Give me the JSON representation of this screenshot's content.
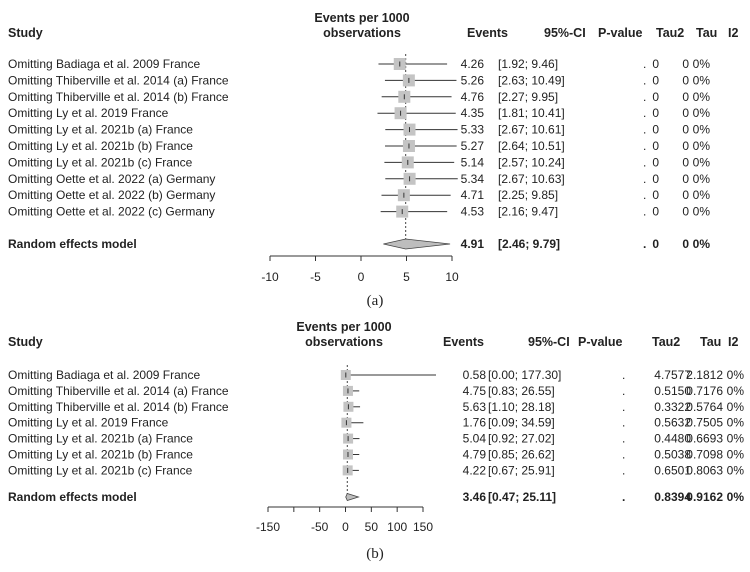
{
  "caption_a": "(a)",
  "caption_b": "(b)",
  "chart_data": [
    {
      "type": "forest",
      "header": {
        "study": "Study",
        "events_per_1000_line1": "Events per 1000",
        "events_per_1000_line2": "observations",
        "events": "Events",
        "ci": "95%-CI",
        "pvalue": "P-value",
        "tau2": "Tau2",
        "tau": "Tau",
        "i2": "I2"
      },
      "xlim": [
        -10,
        10
      ],
      "ticks": [
        "-10",
        "-5",
        "0",
        "5",
        "10"
      ],
      "tick_values": [
        -10,
        -5,
        0,
        5,
        10
      ],
      "rows": [
        {
          "label": "Omitting Badiaga et al. 2009 France",
          "est": 4.26,
          "lo": 1.92,
          "hi": 9.46,
          "events": "4.26",
          "ci": "[1.92;  9.46]",
          "pvalue": ".",
          "tau2": "0",
          "tau": "0",
          "i2": "0%"
        },
        {
          "label": "Omitting Thiberville et al. 2014 (a) France",
          "est": 5.26,
          "lo": 2.63,
          "hi": 10.49,
          "events": "5.26",
          "ci": "[2.63; 10.49]",
          "pvalue": ".",
          "tau2": "0",
          "tau": "0",
          "i2": "0%"
        },
        {
          "label": "Omitting Thiberville et al. 2014 (b) France",
          "est": 4.76,
          "lo": 2.27,
          "hi": 9.95,
          "events": "4.76",
          "ci": "[2.27;  9.95]",
          "pvalue": ".",
          "tau2": "0",
          "tau": "0",
          "i2": "0%"
        },
        {
          "label": "Omitting Ly et al. 2019 France",
          "est": 4.35,
          "lo": 1.81,
          "hi": 10.41,
          "events": "4.35",
          "ci": "[1.81; 10.41]",
          "pvalue": ".",
          "tau2": "0",
          "tau": "0",
          "i2": "0%"
        },
        {
          "label": "Omitting Ly et al. 2021b (a) France",
          "est": 5.33,
          "lo": 2.67,
          "hi": 10.61,
          "events": "5.33",
          "ci": "[2.67; 10.61]",
          "pvalue": ".",
          "tau2": "0",
          "tau": "0",
          "i2": "0%"
        },
        {
          "label": "Omitting Ly et al. 2021b (b) France",
          "est": 5.27,
          "lo": 2.64,
          "hi": 10.51,
          "events": "5.27",
          "ci": "[2.64; 10.51]",
          "pvalue": ".",
          "tau2": "0",
          "tau": "0",
          "i2": "0%"
        },
        {
          "label": "Omitting Ly et al. 2021b (c) France",
          "est": 5.14,
          "lo": 2.57,
          "hi": 10.24,
          "events": "5.14",
          "ci": "[2.57; 10.24]",
          "pvalue": ".",
          "tau2": "0",
          "tau": "0",
          "i2": "0%"
        },
        {
          "label": "Omitting Oette et al. 2022 (a) Germany",
          "est": 5.34,
          "lo": 2.67,
          "hi": 10.63,
          "events": "5.34",
          "ci": "[2.67; 10.63]",
          "pvalue": ".",
          "tau2": "0",
          "tau": "0",
          "i2": "0%"
        },
        {
          "label": "Omitting Oette et al. 2022 (b) Germany",
          "est": 4.71,
          "lo": 2.25,
          "hi": 9.85,
          "events": "4.71",
          "ci": "[2.25;  9.85]",
          "pvalue": ".",
          "tau2": "0",
          "tau": "0",
          "i2": "0%"
        },
        {
          "label": "Omitting Oette et al. 2022 (c) Germany",
          "est": 4.53,
          "lo": 2.16,
          "hi": 9.47,
          "events": "4.53",
          "ci": "[2.16;  9.47]",
          "pvalue": ".",
          "tau2": "0",
          "tau": "0",
          "i2": "0%"
        }
      ],
      "summary": {
        "label": "Random effects model",
        "est": 4.91,
        "lo": 2.46,
        "hi": 9.79,
        "events": "4.91",
        "ci": "[2.46;  9.79]",
        "pvalue": ".",
        "tau2": "0",
        "tau": "0",
        "i2": "0%"
      }
    },
    {
      "type": "forest",
      "header": {
        "study": "Study",
        "events_per_1000_line1": "Events per 1000",
        "events_per_1000_line2": "observations",
        "events": "Events",
        "ci": "95%-CI",
        "pvalue": "P-value",
        "tau2": "Tau2",
        "tau": "Tau",
        "i2": "I2"
      },
      "xlim": [
        -150,
        150
      ],
      "ticks": [
        "-150",
        "-50",
        "0",
        "50",
        "100",
        "150"
      ],
      "tick_values": [
        -150,
        -50,
        0,
        50,
        100,
        150
      ],
      "minor_ticks": [
        -100
      ],
      "rows": [
        {
          "label": "Omitting Badiaga et al. 2009 France",
          "est": 0.58,
          "lo": 0.0,
          "hi": 177.3,
          "events": "0.58",
          "ci": "[0.00; 177.30]",
          "pvalue": ".",
          "tau2": "4.7577",
          "tau": "2.1812",
          "i2": "0%"
        },
        {
          "label": "Omitting Thiberville et al. 2014 (a) France",
          "est": 4.75,
          "lo": 0.83,
          "hi": 26.55,
          "events": "4.75",
          "ci": "[0.83;  26.55]",
          "pvalue": ".",
          "tau2": "0.5150",
          "tau": "0.7176",
          "i2": "0%"
        },
        {
          "label": "Omitting Thiberville et al. 2014 (b) France",
          "est": 5.63,
          "lo": 1.1,
          "hi": 28.18,
          "events": "5.63",
          "ci": "[1.10;  28.18]",
          "pvalue": ".",
          "tau2": "0.3322",
          "tau": "0.5764",
          "i2": "0%"
        },
        {
          "label": "Omitting Ly et al. 2019 France",
          "est": 1.76,
          "lo": 0.09,
          "hi": 34.59,
          "events": "1.76",
          "ci": "[0.09;  34.59]",
          "pvalue": ".",
          "tau2": "0.5632",
          "tau": "0.7505",
          "i2": "0%"
        },
        {
          "label": "Omitting Ly et al. 2021b (a) France",
          "est": 5.04,
          "lo": 0.92,
          "hi": 27.02,
          "events": "5.04",
          "ci": "[0.92;  27.02]",
          "pvalue": ".",
          "tau2": "0.4480",
          "tau": "0.6693",
          "i2": "0%"
        },
        {
          "label": "Omitting Ly et al. 2021b (b) France",
          "est": 4.79,
          "lo": 0.85,
          "hi": 26.62,
          "events": "4.79",
          "ci": "[0.85;  26.62]",
          "pvalue": ".",
          "tau2": "0.5038",
          "tau": "0.7098",
          "i2": "0%"
        },
        {
          "label": "Omitting Ly et al. 2021b (c) France",
          "est": 4.22,
          "lo": 0.67,
          "hi": 25.91,
          "events": "4.22",
          "ci": "[0.67;  25.91]",
          "pvalue": ".",
          "tau2": "0.6501",
          "tau": "0.8063",
          "i2": "0%"
        }
      ],
      "summary": {
        "label": "Random effects model",
        "est": 3.46,
        "lo": 0.47,
        "hi": 25.11,
        "events": "3.46",
        "ci": "[0.47;  25.11]",
        "pvalue": ".",
        "tau2": "0.8394",
        "tau": "0.9162",
        "i2": "0%"
      }
    }
  ]
}
